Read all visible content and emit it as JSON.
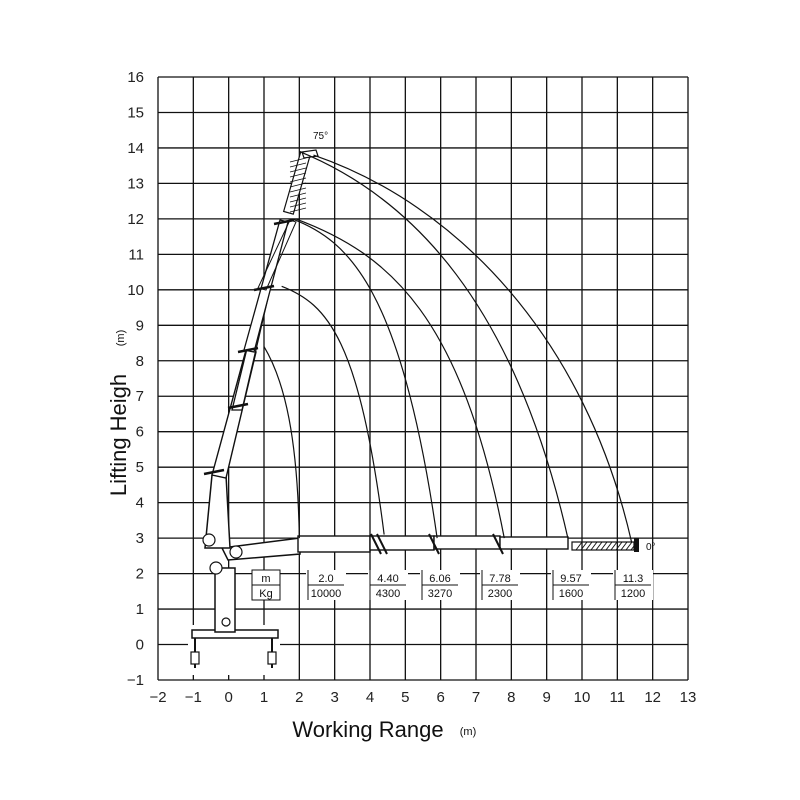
{
  "chart_data": {
    "type": "line",
    "xlabel": "Working Range",
    "xunit": "(m)",
    "ylabel": "Lifting Heigh",
    "yunit": "(m)",
    "xlim": [
      -2,
      13
    ],
    "ylim": [
      -1,
      16
    ],
    "x_ticks": [
      "-2",
      "-1",
      "0",
      "1",
      "2",
      "3",
      "4",
      "5",
      "6",
      "7",
      "8",
      "9",
      "10",
      "11",
      "12",
      "13"
    ],
    "y_ticks": [
      "-1",
      "0",
      "1",
      "2",
      "3",
      "4",
      "5",
      "6",
      "7",
      "8",
      "9",
      "10",
      "11",
      "12",
      "13",
      "14",
      "15",
      "16"
    ],
    "grid": true,
    "angle_labels": {
      "max": "75°",
      "min": "0°"
    },
    "load_table": {
      "row_labels": [
        "m",
        "Kg"
      ],
      "columns": [
        {
          "range": "2.0",
          "load": "10000"
        },
        {
          "range": "4.40",
          "load": "4300"
        },
        {
          "range": "6.06",
          "load": "3270"
        },
        {
          "range": "7.78",
          "load": "2300"
        },
        {
          "range": "9.57",
          "load": "1600"
        },
        {
          "range": "11.3",
          "load": "1200"
        }
      ]
    },
    "series": [
      {
        "points": [
          [
            1.0,
            8.4
          ],
          [
            1.6,
            7.4
          ],
          [
            1.95,
            5.8
          ],
          [
            2.0,
            3.0
          ]
        ]
      },
      {
        "points": [
          [
            1.5,
            10.1
          ],
          [
            2.8,
            9.6
          ],
          [
            3.7,
            8.6
          ],
          [
            4.4,
            3.1
          ]
        ]
      },
      {
        "points": [
          [
            1.8,
            12.0
          ],
          [
            3.4,
            11.4
          ],
          [
            4.9,
            10.0
          ],
          [
            5.9,
            3.0
          ]
        ]
      },
      {
        "points": [
          [
            1.9,
            12.0
          ],
          [
            4.6,
            11.0
          ],
          [
            6.6,
            9.2
          ],
          [
            7.8,
            3.0
          ]
        ]
      },
      {
        "points": [
          [
            2.0,
            13.9
          ],
          [
            5.2,
            12.6
          ],
          [
            8.1,
            9.6
          ],
          [
            9.6,
            3.0
          ]
        ]
      },
      {
        "points": [
          [
            2.4,
            13.8
          ],
          [
            6.5,
            12.4
          ],
          [
            10.1,
            8.6
          ],
          [
            11.4,
            2.9
          ]
        ]
      }
    ]
  }
}
